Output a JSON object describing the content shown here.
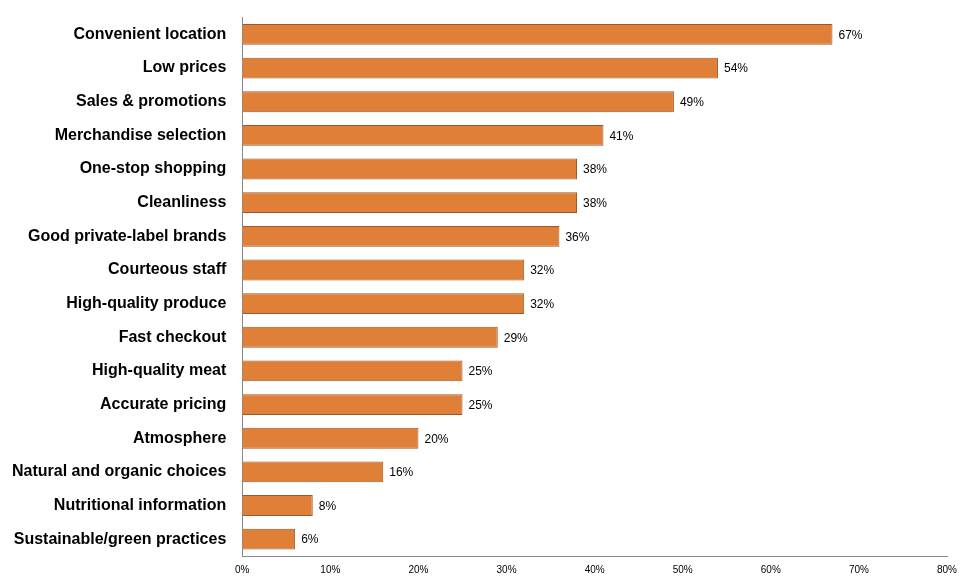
{
  "chart_data": {
    "type": "bar",
    "orientation": "horizontal",
    "categories": [
      "Convenient location",
      "Low prices",
      "Sales & promotions",
      "Merchandise selection",
      "One-stop shopping",
      "Cleanliness",
      "Good private-label brands",
      "Courteous staff",
      "High-quality produce",
      "Fast checkout",
      "High-quality meat",
      "Accurate pricing",
      "Atmosphere",
      "Natural and organic choices",
      "Nutritional information",
      "Sustainable/green practices"
    ],
    "values": [
      67,
      54,
      49,
      41,
      38,
      38,
      36,
      32,
      32,
      29,
      25,
      25,
      20,
      16,
      8,
      6
    ],
    "value_labels": [
      "67%",
      "54%",
      "49%",
      "41%",
      "38%",
      "38%",
      "36%",
      "32%",
      "32%",
      "29%",
      "25%",
      "25%",
      "20%",
      "16%",
      "8%",
      "6%"
    ],
    "data_labels": true,
    "color": "#e07f38",
    "xlim": [
      0,
      80
    ],
    "xticks": [
      {
        "value": 0,
        "label": "0%"
      },
      {
        "value": 10,
        "label": "10%"
      },
      {
        "value": 20,
        "label": "20%"
      },
      {
        "value": 30,
        "label": "30%"
      },
      {
        "value": 40,
        "label": "40%"
      },
      {
        "value": 50,
        "label": "50%"
      },
      {
        "value": 60,
        "label": "60%"
      },
      {
        "value": 70,
        "label": "70%"
      },
      {
        "value": 80,
        "label": "80%"
      }
    ],
    "grid": false
  }
}
